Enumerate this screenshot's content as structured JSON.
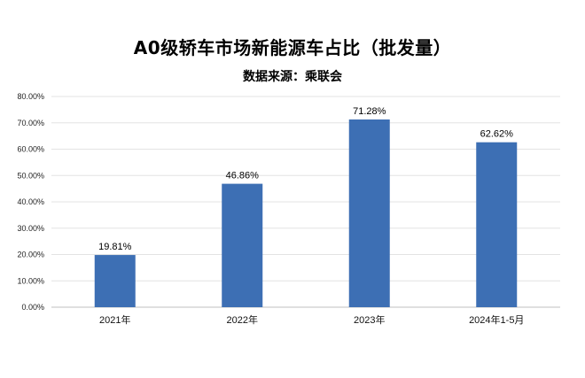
{
  "chart_data": {
    "type": "bar",
    "title": "A0级轿车市场新能源车占比（批发量）",
    "subtitle": "数据来源：乘联会",
    "categories": [
      "2021年",
      "2022年",
      "2023年",
      "2024年1-5月"
    ],
    "values": [
      19.81,
      46.86,
      71.28,
      62.62
    ],
    "data_labels": [
      "19.81%",
      "46.86%",
      "71.28%",
      "62.62%"
    ],
    "yticks": [
      "0.00%",
      "10.00%",
      "20.00%",
      "30.00%",
      "40.00%",
      "50.00%",
      "60.00%",
      "70.00%",
      "80.00%"
    ],
    "ylim": [
      0,
      80
    ],
    "bar_color": "#3d6fb4",
    "grid": true,
    "legend": "none"
  }
}
